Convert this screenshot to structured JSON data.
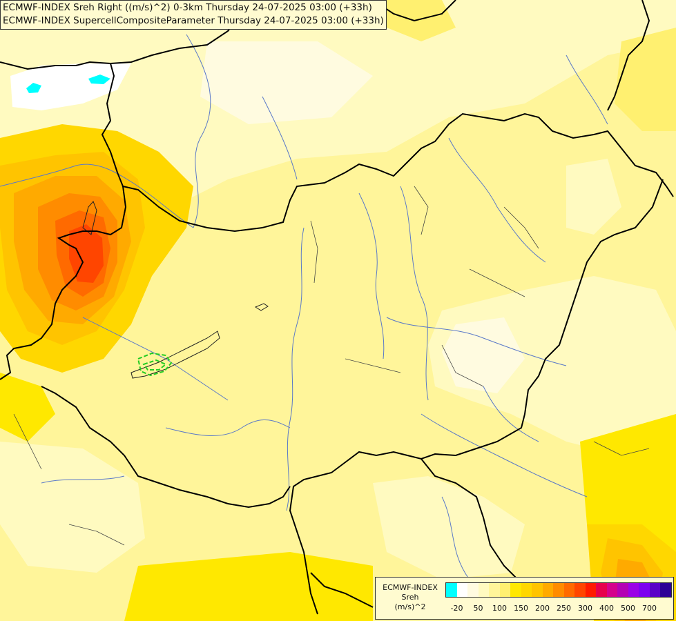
{
  "header": {
    "line1": "ECMWF-INDEX Sreh Right ((m/s)^2) 0-3km Thursday 24-07-2025 03:00 (+33h)",
    "line2": "ECMWF-INDEX SupercellCompositeParameter Thursday 24-07-2025 03:00 (+33h)"
  },
  "legend": {
    "title": [
      "ECMWF-INDEX",
      "Sreh",
      "(m/s)^2"
    ],
    "colors": [
      "#00ffff",
      "#ffffff",
      "#fffbe0",
      "#fffac0",
      "#fff59a",
      "#fff070",
      "#ffe800",
      "#ffd700",
      "#ffc400",
      "#ffaa00",
      "#ff8c00",
      "#ff6a00",
      "#ff4500",
      "#ff1a00",
      "#e6004c",
      "#d4008c",
      "#b400b4",
      "#9b00e6",
      "#7d00f0",
      "#5a00c8",
      "#2d0096"
    ],
    "ticks": [
      {
        "label": "-20",
        "index": 1
      },
      {
        "label": "50",
        "index": 3
      },
      {
        "label": "100",
        "index": 5
      },
      {
        "label": "150",
        "index": 7
      },
      {
        "label": "200",
        "index": 9
      },
      {
        "label": "250",
        "index": 11
      },
      {
        "label": "300",
        "index": 13
      },
      {
        "label": "400",
        "index": 15
      },
      {
        "label": "500",
        "index": 17
      },
      {
        "label": "700",
        "index": 19
      }
    ]
  }
}
